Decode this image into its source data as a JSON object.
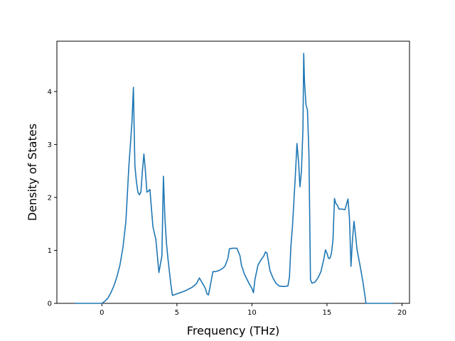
{
  "chart_data": {
    "type": "line",
    "title": "",
    "xlabel": "Frequency (THz)",
    "ylabel": "Density of States",
    "xlim": [
      -3.0,
      20.5
    ],
    "ylim": [
      0,
      4.95
    ],
    "xticks": [
      0,
      5,
      10,
      15,
      20
    ],
    "yticks": [
      0,
      1,
      2,
      3,
      4
    ],
    "grid": false,
    "legend": "none",
    "series": [
      {
        "color": "#1f77b4",
        "x": [
          -1.8,
          -1.0,
          -0.5,
          0.0,
          0.2,
          0.4,
          0.6,
          0.8,
          1.0,
          1.2,
          1.4,
          1.6,
          1.8,
          1.9,
          2.0,
          2.1,
          2.15,
          2.2,
          2.3,
          2.4,
          2.5,
          2.6,
          2.7,
          2.8,
          2.9,
          3.0,
          3.1,
          3.2,
          3.3,
          3.4,
          3.6,
          3.8,
          4.0,
          4.1,
          4.2,
          4.3,
          4.4,
          4.5,
          4.6,
          4.7,
          5.0,
          5.5,
          6.0,
          6.3,
          6.5,
          6.7,
          6.9,
          7.0,
          7.1,
          7.2,
          7.4,
          7.6,
          7.8,
          8.0,
          8.2,
          8.4,
          8.5,
          8.7,
          9.0,
          9.2,
          9.3,
          9.5,
          9.8,
          10.0,
          10.1,
          10.2,
          10.4,
          10.6,
          10.8,
          10.9,
          11.0,
          11.2,
          11.4,
          11.6,
          11.8,
          12.0,
          12.2,
          12.4,
          12.5,
          12.6,
          12.7,
          12.9,
          13.0,
          13.1,
          13.2,
          13.3,
          13.4,
          13.45,
          13.5,
          13.6,
          13.7,
          13.8,
          13.9,
          14.0,
          14.2,
          14.4,
          14.6,
          14.8,
          14.9,
          15.0,
          15.1,
          15.2,
          15.3,
          15.4,
          15.5,
          15.6,
          15.7,
          15.8,
          16.0,
          16.2,
          16.4,
          16.5,
          16.6,
          16.7,
          16.8,
          16.9,
          17.0,
          17.2,
          17.4,
          17.6,
          17.8,
          18.0,
          18.5,
          19.0,
          19.4
        ],
        "y": [
          0,
          0,
          0,
          0,
          0.04,
          0.1,
          0.2,
          0.33,
          0.5,
          0.72,
          1.05,
          1.55,
          2.6,
          3.0,
          3.4,
          4.08,
          3.3,
          2.6,
          2.3,
          2.1,
          2.05,
          2.1,
          2.5,
          2.82,
          2.5,
          2.1,
          2.12,
          2.15,
          1.8,
          1.45,
          1.2,
          0.58,
          0.9,
          2.4,
          1.6,
          1.15,
          0.85,
          0.6,
          0.35,
          0.15,
          0.18,
          0.23,
          0.3,
          0.37,
          0.48,
          0.38,
          0.28,
          0.18,
          0.16,
          0.3,
          0.6,
          0.6,
          0.62,
          0.65,
          0.7,
          0.85,
          1.03,
          1.04,
          1.04,
          0.9,
          0.72,
          0.55,
          0.38,
          0.28,
          0.2,
          0.45,
          0.72,
          0.82,
          0.9,
          0.97,
          0.95,
          0.62,
          0.48,
          0.38,
          0.33,
          0.32,
          0.32,
          0.33,
          0.5,
          1.1,
          1.45,
          2.45,
          3.02,
          2.7,
          2.2,
          2.5,
          3.3,
          4.72,
          4.2,
          3.75,
          3.65,
          2.8,
          0.45,
          0.38,
          0.4,
          0.48,
          0.6,
          0.85,
          1.01,
          0.95,
          0.85,
          0.85,
          0.95,
          1.2,
          1.98,
          1.88,
          1.85,
          1.78,
          1.78,
          1.77,
          1.97,
          1.6,
          0.7,
          1.2,
          1.55,
          1.3,
          1.02,
          0.72,
          0.4,
          0.0,
          0,
          0,
          0,
          0,
          0
        ]
      }
    ]
  }
}
